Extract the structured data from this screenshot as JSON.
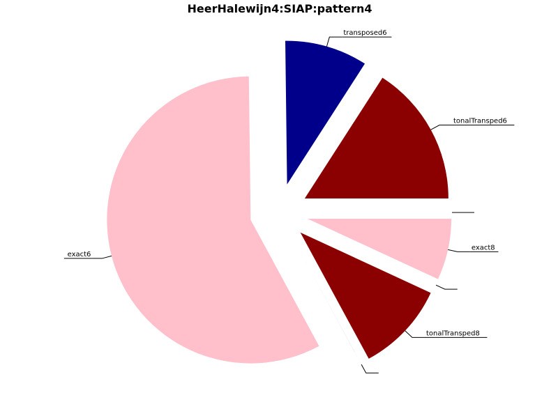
{
  "chart_data": {
    "type": "pie",
    "title": "HeerHalewijn4:SIAP:pattern4",
    "start_angle_deg": 0,
    "direction": "clockwise",
    "exploded": true,
    "slices": [
      {
        "label": "",
        "value": 0.001,
        "color": "#8b0000"
      },
      {
        "label": "exact8",
        "value": 6.9,
        "color": "#ffc0cb"
      },
      {
        "label": "",
        "value": 0.001,
        "color": "#00008b"
      },
      {
        "label": "tonalTransped8",
        "value": 10.2,
        "color": "#8b0000"
      },
      {
        "label": "",
        "value": 0.001,
        "color": "#00008b"
      },
      {
        "label": "exact6",
        "value": 57.7,
        "color": "#ffc0cb"
      },
      {
        "label": "transposed6",
        "value": 9.3,
        "color": "#00008b"
      },
      {
        "label": "tonalTransped6",
        "value": 15.9,
        "color": "#8b0000"
      }
    ]
  }
}
